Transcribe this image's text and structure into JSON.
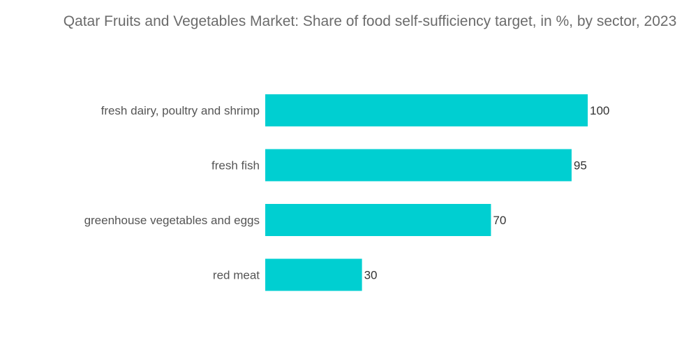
{
  "chart_data": {
    "type": "bar",
    "orientation": "horizontal",
    "title": "Qatar Fruits and Vegetables Market: Share of food self-sufficiency target, in %, by sector, 2023",
    "categories": [
      "fresh dairy, poultry and shrimp",
      "fresh fish",
      "greenhouse vegetables and eggs",
      "red meat"
    ],
    "values": [
      100,
      95,
      70,
      30
    ],
    "xlim": [
      0,
      100
    ],
    "grid": false,
    "legend": "none",
    "bar_color": "#00cfd1"
  }
}
